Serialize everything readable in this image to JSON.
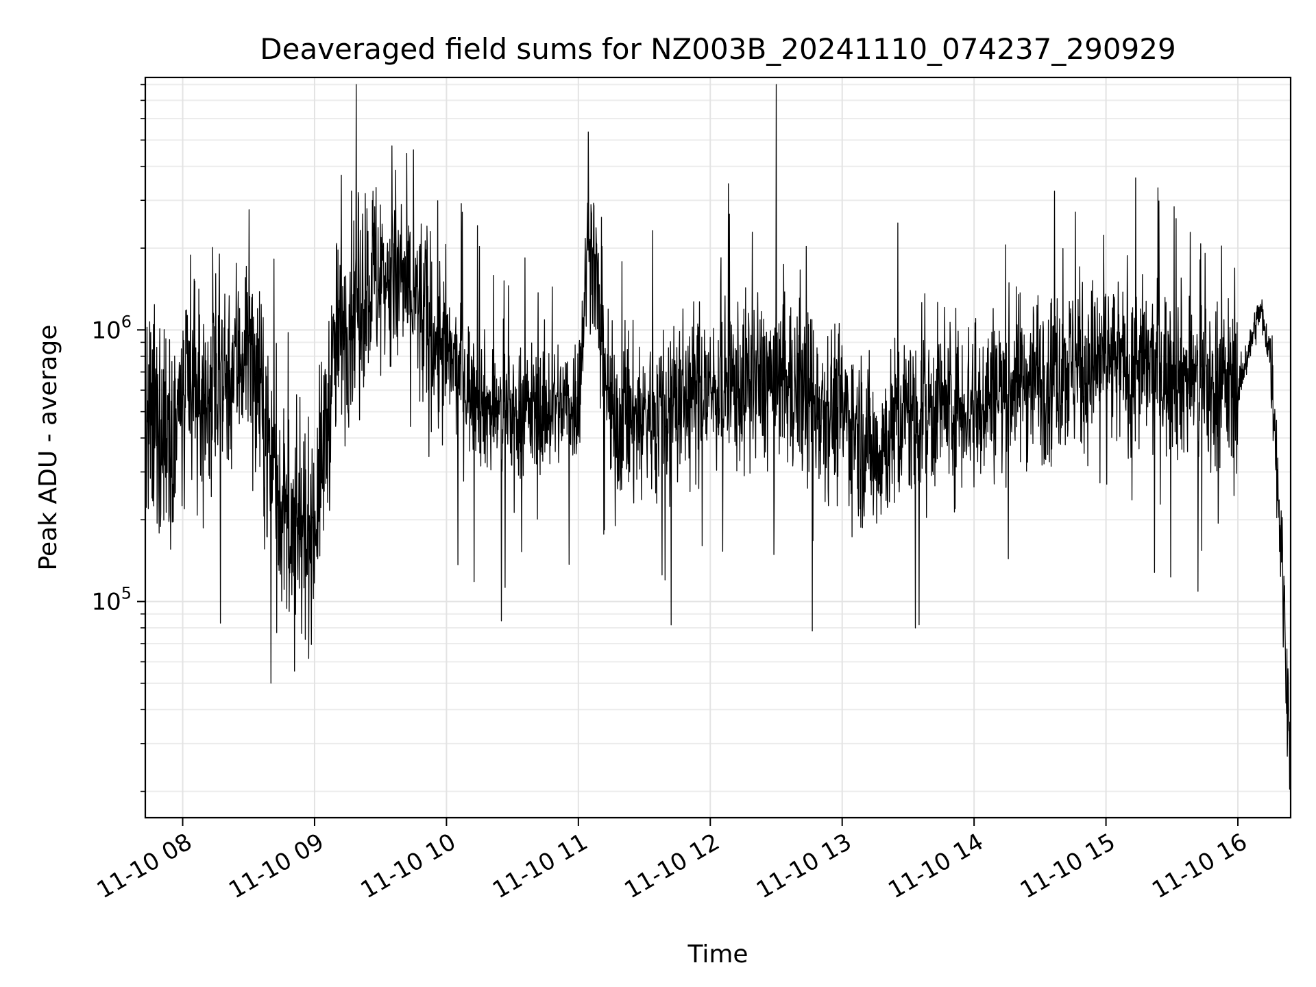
{
  "chart_data": {
    "type": "line",
    "title": "Deaveraged field sums for NZ003B_20241110_074237_290929",
    "xlabel": "Time",
    "ylabel": "Peak ADU - average",
    "yscale": "log",
    "ylim": [
      16000,
      8500000
    ],
    "xlim": [
      "2024-11-10 07:43",
      "2024-11-10 16:24"
    ],
    "x_ticks": [
      {
        "x": "2024-11-10 08:00",
        "label": "11-10 08"
      },
      {
        "x": "2024-11-10 09:00",
        "label": "11-10 09"
      },
      {
        "x": "2024-11-10 10:00",
        "label": "11-10 10"
      },
      {
        "x": "2024-11-10 11:00",
        "label": "11-10 11"
      },
      {
        "x": "2024-11-10 12:00",
        "label": "11-10 12"
      },
      {
        "x": "2024-11-10 13:00",
        "label": "11-10 13"
      },
      {
        "x": "2024-11-10 14:00",
        "label": "11-10 14"
      },
      {
        "x": "2024-11-10 15:00",
        "label": "11-10 15"
      },
      {
        "x": "2024-11-10 16:00",
        "label": "11-10 16"
      }
    ],
    "y_ticks": [
      {
        "value": 100000,
        "base": "10",
        "exp": "5"
      },
      {
        "value": 1000000,
        "base": "10",
        "exp": "6"
      }
    ],
    "grid": true,
    "line_color": "#000000",
    "series": [
      {
        "x": [
          "2024-11-10 07:43",
          "2024-11-10 08:00",
          "2024-11-10 08:15",
          "2024-11-10 08:30",
          "2024-11-10 08:40",
          "2024-11-10 08:50",
          "2024-11-10 09:00",
          "2024-11-10 09:10",
          "2024-11-10 09:25",
          "2024-11-10 09:40",
          "2024-11-10 10:00",
          "2024-11-10 10:20",
          "2024-11-10 10:40",
          "2024-11-10 11:00",
          "2024-11-10 11:05",
          "2024-11-10 11:15",
          "2024-11-10 11:30",
          "2024-11-10 11:45",
          "2024-11-10 12:00",
          "2024-11-10 12:30",
          "2024-11-10 13:00",
          "2024-11-10 13:15",
          "2024-11-10 13:30",
          "2024-11-10 14:00",
          "2024-11-10 14:30",
          "2024-11-10 15:00",
          "2024-11-10 15:30",
          "2024-11-10 16:00",
          "2024-11-10 16:10",
          "2024-11-10 16:15",
          "2024-11-10 16:20",
          "2024-11-10 16:24"
        ],
        "y": [
          400000,
          500000,
          600000,
          900000,
          350000,
          150000,
          200000,
          900000,
          1600000,
          1500000,
          800000,
          500000,
          500000,
          550000,
          2500000,
          450000,
          480000,
          550000,
          600000,
          650000,
          500000,
          350000,
          500000,
          550000,
          700000,
          750000,
          700000,
          600000,
          1200000,
          800000,
          150000,
          25000
        ]
      }
    ]
  }
}
